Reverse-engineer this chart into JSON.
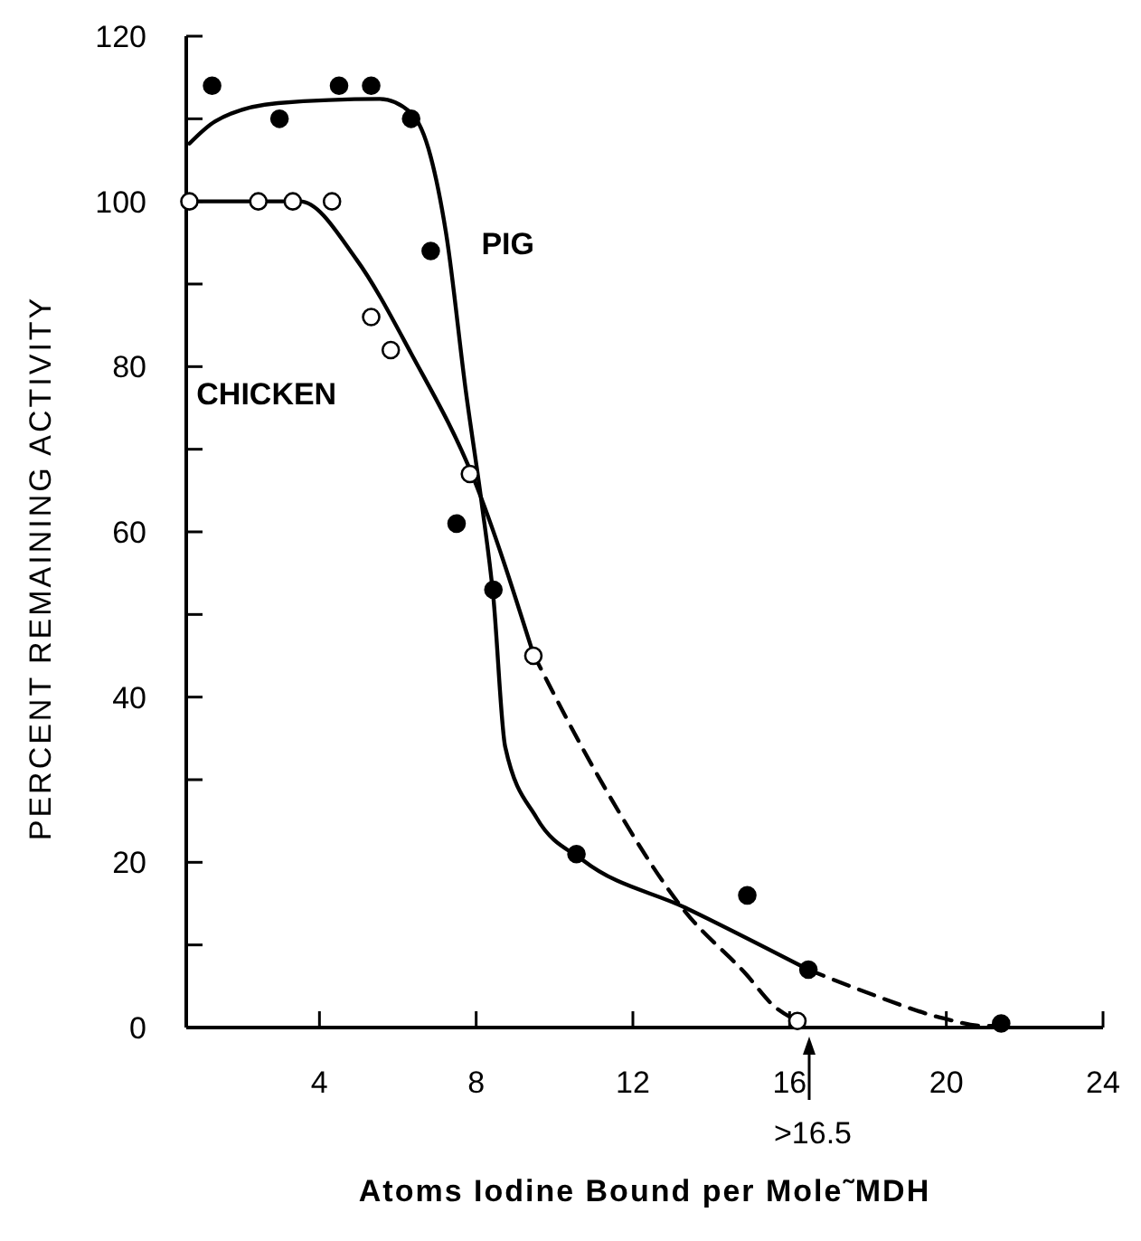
{
  "chart_data": {
    "type": "scatter",
    "xlabel": "Atoms Iodine Bound per Mole˜MDH",
    "ylabel": "PERCENT REMAINING ACTIVITY",
    "xlim": [
      0.6,
      24
    ],
    "xticks": [
      4,
      8,
      12,
      16,
      20,
      24
    ],
    "ylim": [
      0,
      120
    ],
    "yticks": [
      0,
      {
        "value": 10,
        "label": null
      },
      20,
      {
        "value": 30,
        "label": null
      },
      40,
      {
        "value": 50,
        "label": null
      },
      60,
      {
        "value": 70,
        "label": null
      },
      80,
      {
        "value": 90,
        "label": null
      },
      100,
      {
        "value": 110,
        "label": null
      },
      120
    ],
    "grid": false,
    "marker": "circle",
    "series": [
      {
        "name": "PIG",
        "color": "#000000",
        "x": [
          1.26,
          2.98,
          4.5,
          5.32,
          6.34,
          6.84,
          7.5,
          8.44,
          10.56,
          14.92,
          16.48,
          21.4
        ],
        "values": [
          114,
          110,
          114,
          114,
          110,
          94,
          61,
          53,
          21,
          16,
          7,
          0.5
        ]
      },
      {
        "name": "CHICKEN",
        "color": "#ffffff",
        "x": [
          0.68,
          2.44,
          3.32,
          4.32,
          5.32,
          5.82,
          7.84,
          9.46,
          16.2
        ],
        "values": [
          100,
          100,
          100,
          100,
          86,
          82,
          67,
          45,
          0.8
        ]
      },
      {
        "type": "line",
        "marker": "none",
        "color": "#000000",
        "line_style": "solid",
        "x": [
          0.68,
          1.34,
          2.94,
          5.54,
          6.34,
          6.84,
          7.24,
          7.74,
          8.14,
          8.44,
          8.74,
          9.54,
          10.74,
          13.34,
          16.48
        ],
        "values": [
          107,
          109.7,
          111.9,
          112.4,
          110.7,
          105.4,
          95.9,
          76.9,
          63.5,
          52,
          34,
          25.4,
          20.2,
          14.5,
          7
        ]
      },
      {
        "type": "line",
        "marker": "none",
        "color": "#000000",
        "line_style": "dashed",
        "x": [
          16.48,
          17.94,
          19.94,
          20.94,
          21.7
        ],
        "values": [
          7,
          4.3,
          1.1,
          0.2,
          0.2
        ]
      },
      {
        "type": "line",
        "marker": "none",
        "color": "#000000",
        "line_style": "solid",
        "x": [
          0.68,
          3.5,
          4.94,
          6.34,
          7.94,
          9.46
        ],
        "values": [
          100,
          100,
          93,
          81.6,
          66.4,
          45.2
        ]
      },
      {
        "type": "line",
        "marker": "none",
        "color": "#000000",
        "line_style": "dashed",
        "x": [
          9.46,
          11.14,
          13.34,
          14.9,
          15.6,
          16.2
        ],
        "values": [
          45.2,
          30.2,
          14,
          6.4,
          2.6,
          0.8
        ]
      }
    ],
    "annotations": [
      {
        "text": ">16.5",
        "x": 16.5,
        "y": 0
      }
    ]
  }
}
